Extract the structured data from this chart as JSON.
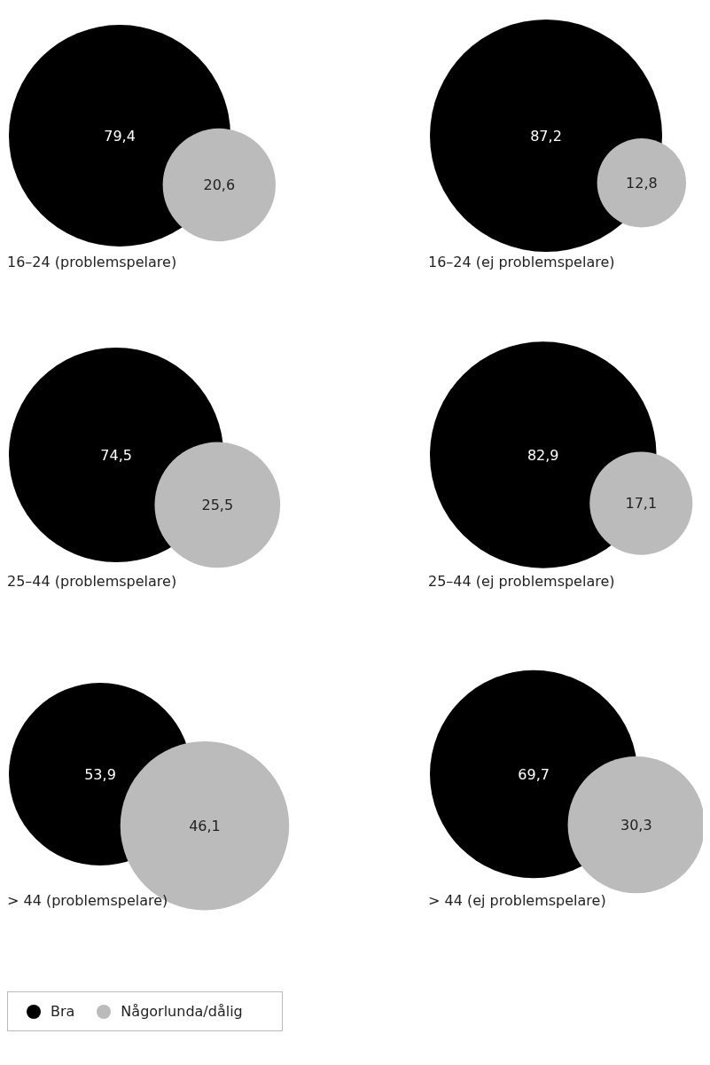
{
  "chart_data": {
    "type": "other",
    "categories": [
      "16–24 (problemspelare)",
      "16–24 (ej problemspelare)",
      "25–44 (problemspelare)",
      "25–44 (ej problemspelare)",
      "> 44 (problemspelare)",
      "> 44 (ej problemspelare)"
    ],
    "legend": "bottom left",
    "series": [
      {
        "name": "Bra",
        "color": "#000000",
        "values": [
          79.4,
          87.2,
          74.5,
          82.9,
          53.9,
          69.7
        ],
        "value_labels": [
          "79,4",
          "87,2",
          "74,5",
          "82,9",
          "53,9",
          "69,7"
        ]
      },
      {
        "name": "Någorlunda/dålig",
        "color": "#bbbbbb",
        "values": [
          20.6,
          12.8,
          25.5,
          17.1,
          46.1,
          30.3
        ],
        "value_labels": [
          "20,6",
          "12,8",
          "25,5",
          "17,1",
          "46,1",
          "30,3"
        ]
      }
    ]
  }
}
